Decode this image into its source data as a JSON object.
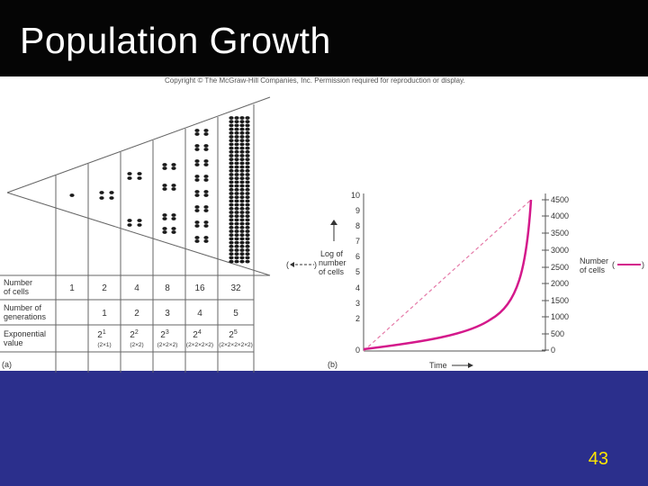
{
  "slide": {
    "title": "Population Growth",
    "page_number": "43"
  },
  "figure": {
    "copyright": "Copyright © The McGraw-Hill Companies, Inc. Permission required for reproduction or display.",
    "panel_a": {
      "label": "(a)",
      "row_headers": [
        "Number of cells",
        "Number of generations",
        "Exponential value"
      ],
      "cells": [
        "1",
        "2",
        "4",
        "8",
        "16",
        "32"
      ],
      "generations": [
        "1",
        "2",
        "3",
        "4",
        "5"
      ],
      "exponents": [
        {
          "power": "1",
          "expansion": "(2×1)"
        },
        {
          "power": "2",
          "expansion": "(2×2)"
        },
        {
          "power": "3",
          "expansion": "(2×2×2)"
        },
        {
          "power": "4",
          "expansion": "(2×2×2×2)"
        },
        {
          "power": "5",
          "expansion": "(2×2×2×2×2)"
        }
      ]
    },
    "panel_b": {
      "label": "(b)",
      "x_axis_label": "Time",
      "left_axis_label": [
        "Log of",
        "number",
        "of cells"
      ],
      "right_axis_label": [
        "Number",
        "of cells"
      ],
      "left_ticks": [
        "0",
        "2",
        "3",
        "4",
        "5",
        "6",
        "7",
        "8",
        "9",
        "10"
      ],
      "right_ticks": [
        "0",
        "500",
        "1000",
        "1500",
        "2000",
        "2500",
        "3000",
        "3500",
        "4000",
        "4500"
      ],
      "colors": {
        "linear_curve": "#d4198b",
        "log_line": "#e57aa8"
      }
    }
  }
}
